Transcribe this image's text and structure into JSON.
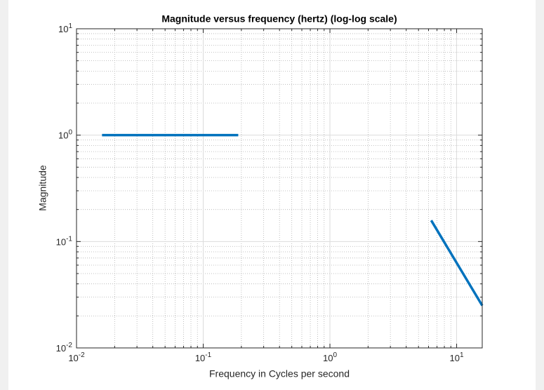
{
  "chart_data": {
    "type": "line",
    "title": "Magnitude versus frequency (hertz) (log-log scale)",
    "x_label": "Frequency in Cycles per second",
    "y_label": "Magnitude",
    "xscale": "log",
    "yscale": "log",
    "grid": true,
    "xlim": [
      0.01,
      15.92
    ],
    "ylim": [
      0.01,
      10
    ],
    "xticks": [
      {
        "value": 0.01,
        "label": "10",
        "exponent": "-2"
      },
      {
        "value": 0.1,
        "label": "10",
        "exponent": "-1"
      },
      {
        "value": 1,
        "label": "10",
        "exponent": "0"
      },
      {
        "value": 10,
        "label": "10",
        "exponent": "1"
      }
    ],
    "yticks": [
      {
        "value": 0.01,
        "label": "10",
        "exponent": "-2"
      },
      {
        "value": 0.1,
        "label": "10",
        "exponent": "-1"
      },
      {
        "value": 1,
        "label": "10",
        "exponent": "0"
      },
      {
        "value": 10,
        "label": "10",
        "exponent": "1"
      }
    ],
    "series": [
      {
        "color": "#0072bd",
        "x": [
          0.0159,
          0.189
        ],
        "values": [
          1,
          1
        ]
      },
      {
        "color": "#0072bd",
        "x": [
          6.3,
          15.92
        ],
        "values": [
          0.158,
          0.025
        ]
      }
    ]
  }
}
